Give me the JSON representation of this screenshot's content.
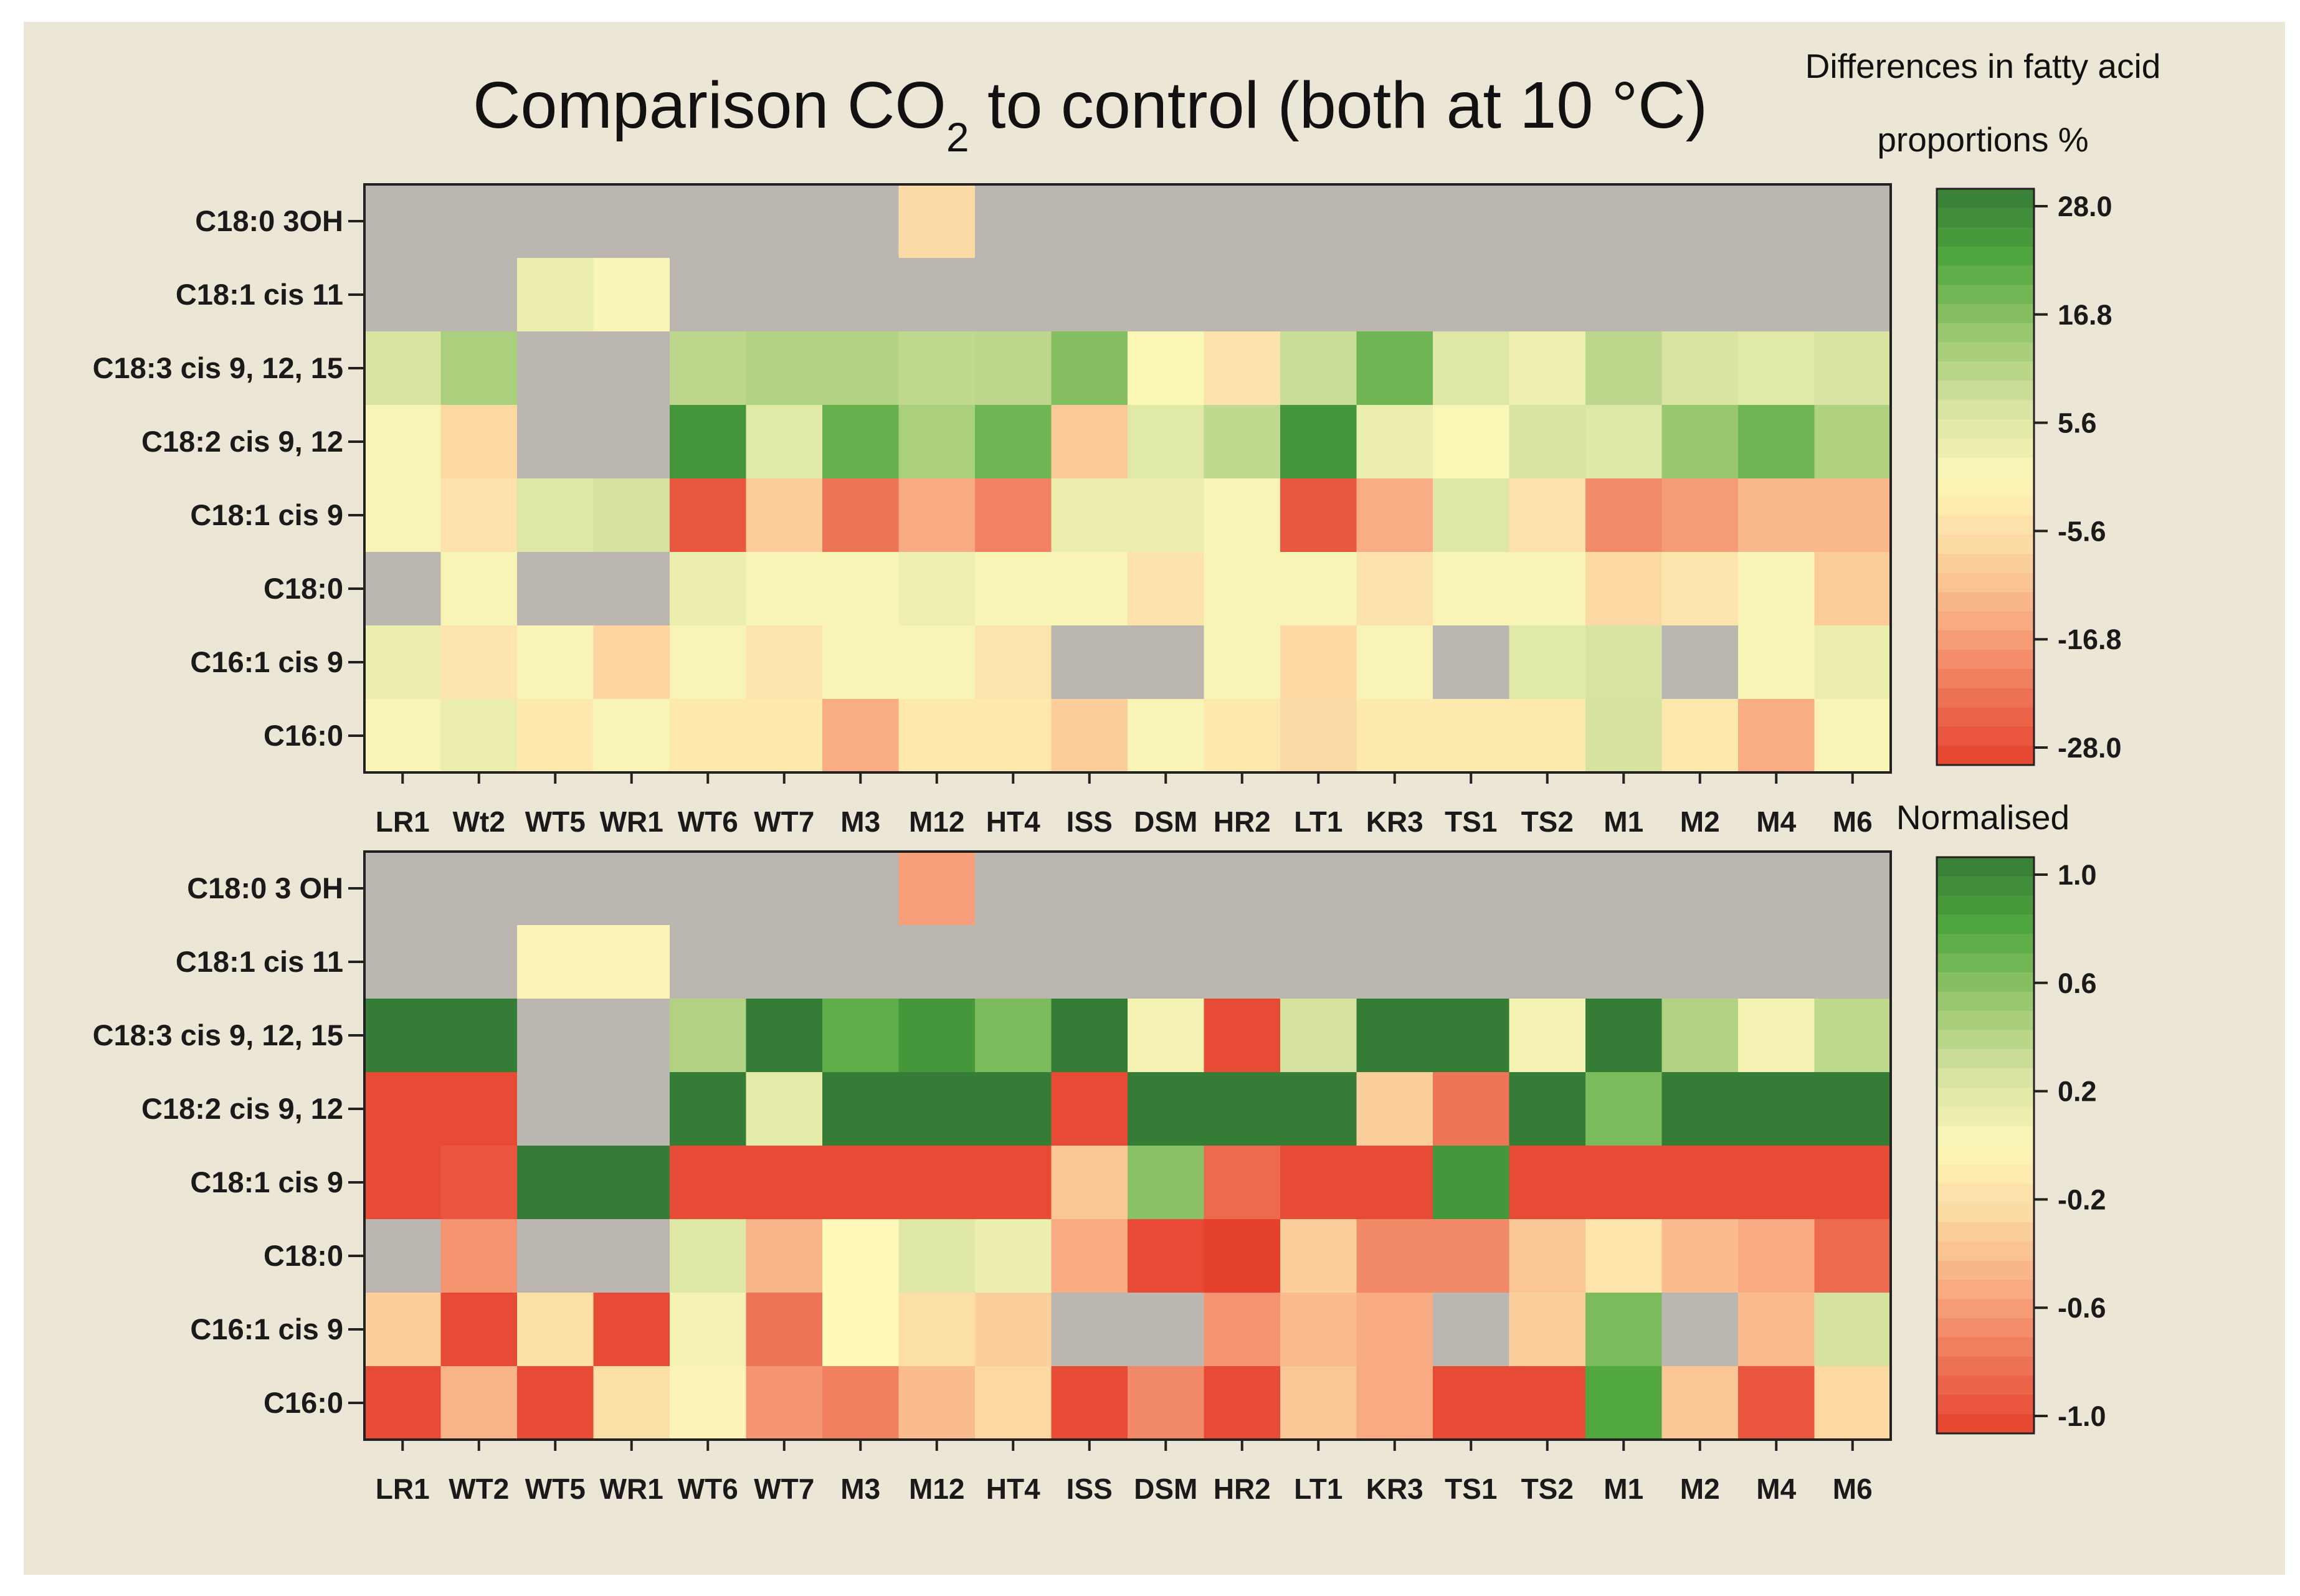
{
  "chart_data": {
    "type": "heatmap",
    "title": {
      "prefix": "Comparison CO",
      "subscript": "2",
      "suffix": " to control (both at 10 °C)"
    },
    "colors": {
      "background": "#ECE6D6",
      "missing": "#BBB6B0",
      "axis": "#222222",
      "scale": [
        "#E5412C",
        "#EE7458",
        "#F8AA82",
        "#FCD8A3",
        "#FDF7B8",
        "#D6E3A0",
        "#99C76F",
        "#51A83F",
        "#357C36"
      ]
    },
    "panels": [
      {
        "rows": [
          "C18:0 3OH",
          "C18:1 cis 11",
          "C18:3 cis 9, 12, 15",
          "C18:2 cis 9, 12",
          "C18:1 cis 9",
          "C18:0",
          "C16:1 cis 9",
          "C16:0"
        ],
        "columns": [
          "LR1",
          "Wt2",
          "WT5",
          "WR1",
          "WT6",
          "WT7",
          "M3",
          "M12",
          "HT4",
          "ISS",
          "DSM",
          "HR2",
          "LT1",
          "KR3",
          "TS1",
          "TS2",
          "M1",
          "M2",
          "M4",
          "M6"
        ],
        "values": [
          [
            null,
            null,
            null,
            null,
            null,
            null,
            null,
            -6.5,
            null,
            null,
            null,
            null,
            null,
            null,
            null,
            null,
            null,
            null,
            null,
            null
          ],
          [
            null,
            null,
            3.0,
            1.0,
            null,
            null,
            null,
            null,
            null,
            null,
            null,
            null,
            null,
            null,
            null,
            null,
            null,
            null,
            null,
            null
          ],
          [
            6.5,
            12.0,
            null,
            null,
            10.0,
            11.0,
            11.0,
            9.5,
            10.0,
            16.0,
            0.5,
            -4.5,
            8.5,
            18.0,
            5.5,
            2.5,
            10.0,
            6.5,
            5.0,
            6.5
          ],
          [
            1.0,
            -7.0,
            null,
            null,
            24.0,
            5.0,
            19.0,
            12.0,
            18.0,
            -9.5,
            5.0,
            9.5,
            24.0,
            3.0,
            0.5,
            6.5,
            5.5,
            14.0,
            18.0,
            11.5
          ],
          [
            1.0,
            -4.5,
            5.5,
            7.0,
            -25.0,
            -9.0,
            -21.0,
            -14.0,
            -19.0,
            3.0,
            3.0,
            1.0,
            -25.0,
            -13.5,
            5.5,
            -4.5,
            -18.0,
            -16.0,
            -12.0,
            -12.0
          ],
          [
            null,
            1.0,
            null,
            null,
            3.0,
            1.0,
            1.0,
            2.5,
            1.0,
            1.0,
            -4.5,
            1.0,
            1.0,
            -4.5,
            1.0,
            1.0,
            -7.0,
            -4.0,
            1.0,
            -9.0
          ],
          [
            3.0,
            -4.0,
            1.0,
            -7.5,
            1.0,
            -4.0,
            1.0,
            1.0,
            -4.0,
            null,
            null,
            1.0,
            -7.0,
            1.0,
            null,
            5.0,
            6.5,
            null,
            1.0,
            3.0
          ],
          [
            1.0,
            3.5,
            -3.5,
            1.0,
            -3.5,
            -3.5,
            -13.5,
            -3.5,
            -3.5,
            -8.5,
            1.0,
            -3.5,
            -6.5,
            -3.0,
            -3.0,
            -3.0,
            7.0,
            -3.5,
            -13.5,
            1.0
          ]
        ],
        "colorbar": {
          "title_lines": [
            "Differences in fatty acid",
            "proportions %"
          ],
          "ticks": [
            28.0,
            16.8,
            5.6,
            -5.6,
            -16.8,
            -28.0
          ],
          "tick_labels": [
            "28.0",
            "16.8",
            "5.6",
            "-5.6",
            "-16.8",
            "-28.0"
          ],
          "range": [
            -28.0,
            28.0
          ]
        }
      },
      {
        "rows": [
          "C18:0 3 OH",
          "C18:1 cis 11",
          "C18:3 cis 9, 12, 15",
          "C18:2 cis 9, 12",
          "C18:1 cis 9",
          "C18:0",
          "C16:1 cis 9",
          "C16:0"
        ],
        "columns": [
          "LR1",
          "WT2",
          "WT5",
          "WR1",
          "WT6",
          "WT7",
          "M3",
          "M12",
          "HT4",
          "ISS",
          "DSM",
          "HR2",
          "LT1",
          "KR3",
          "TS1",
          "TS2",
          "M1",
          "M2",
          "M4",
          "M6"
        ],
        "values": [
          [
            null,
            null,
            null,
            null,
            null,
            null,
            null,
            -0.55,
            null,
            null,
            null,
            null,
            null,
            null,
            null,
            null,
            null,
            null,
            null,
            null
          ],
          [
            null,
            null,
            0.02,
            0.02,
            null,
            null,
            null,
            null,
            null,
            null,
            null,
            null,
            null,
            null,
            null,
            null,
            null,
            null,
            null,
            null
          ],
          [
            1.0,
            1.0,
            null,
            null,
            0.4,
            1.0,
            0.7,
            0.85,
            0.6,
            1.0,
            0.05,
            -0.95,
            0.25,
            1.0,
            1.0,
            0.05,
            1.0,
            0.4,
            0.05,
            0.35
          ],
          [
            -0.95,
            -0.95,
            null,
            null,
            1.0,
            0.15,
            1.0,
            1.0,
            1.0,
            -0.95,
            1.0,
            1.0,
            1.0,
            -0.3,
            -0.75,
            1.0,
            0.6,
            1.0,
            1.0,
            1.0
          ],
          [
            -0.95,
            -0.9,
            1.0,
            1.0,
            -0.95,
            -0.95,
            -0.95,
            -0.95,
            -0.95,
            -0.35,
            0.55,
            -0.8,
            -0.95,
            -0.95,
            0.85,
            -0.95,
            -0.95,
            -0.95,
            -0.95,
            -0.95
          ],
          [
            null,
            -0.6,
            null,
            null,
            0.2,
            -0.45,
            0.0,
            0.2,
            0.1,
            -0.5,
            -0.95,
            -1.0,
            -0.3,
            -0.65,
            -0.65,
            -0.35,
            -0.15,
            -0.4,
            -0.5,
            -0.8
          ],
          [
            -0.3,
            -0.95,
            -0.2,
            -0.95,
            0.05,
            -0.75,
            0.0,
            -0.2,
            -0.3,
            null,
            null,
            -0.6,
            -0.4,
            -0.5,
            null,
            -0.3,
            0.6,
            null,
            -0.4,
            0.25
          ],
          [
            -0.95,
            -0.45,
            -0.95,
            -0.2,
            0.02,
            -0.6,
            -0.7,
            -0.4,
            -0.25,
            -0.95,
            -0.65,
            -0.95,
            -0.35,
            -0.5,
            -0.95,
            -0.95,
            0.75,
            -0.35,
            -0.9,
            -0.25
          ]
        ],
        "colorbar": {
          "title_lines": [
            "Normalised"
          ],
          "ticks": [
            1.0,
            0.6,
            0.2,
            -0.2,
            -0.6,
            -1.0
          ],
          "tick_labels": [
            "1.0",
            "0.6",
            "0.2",
            "-0.2",
            "-0.6",
            "-1.0"
          ],
          "range": [
            -1.0,
            1.0
          ]
        }
      }
    ]
  }
}
